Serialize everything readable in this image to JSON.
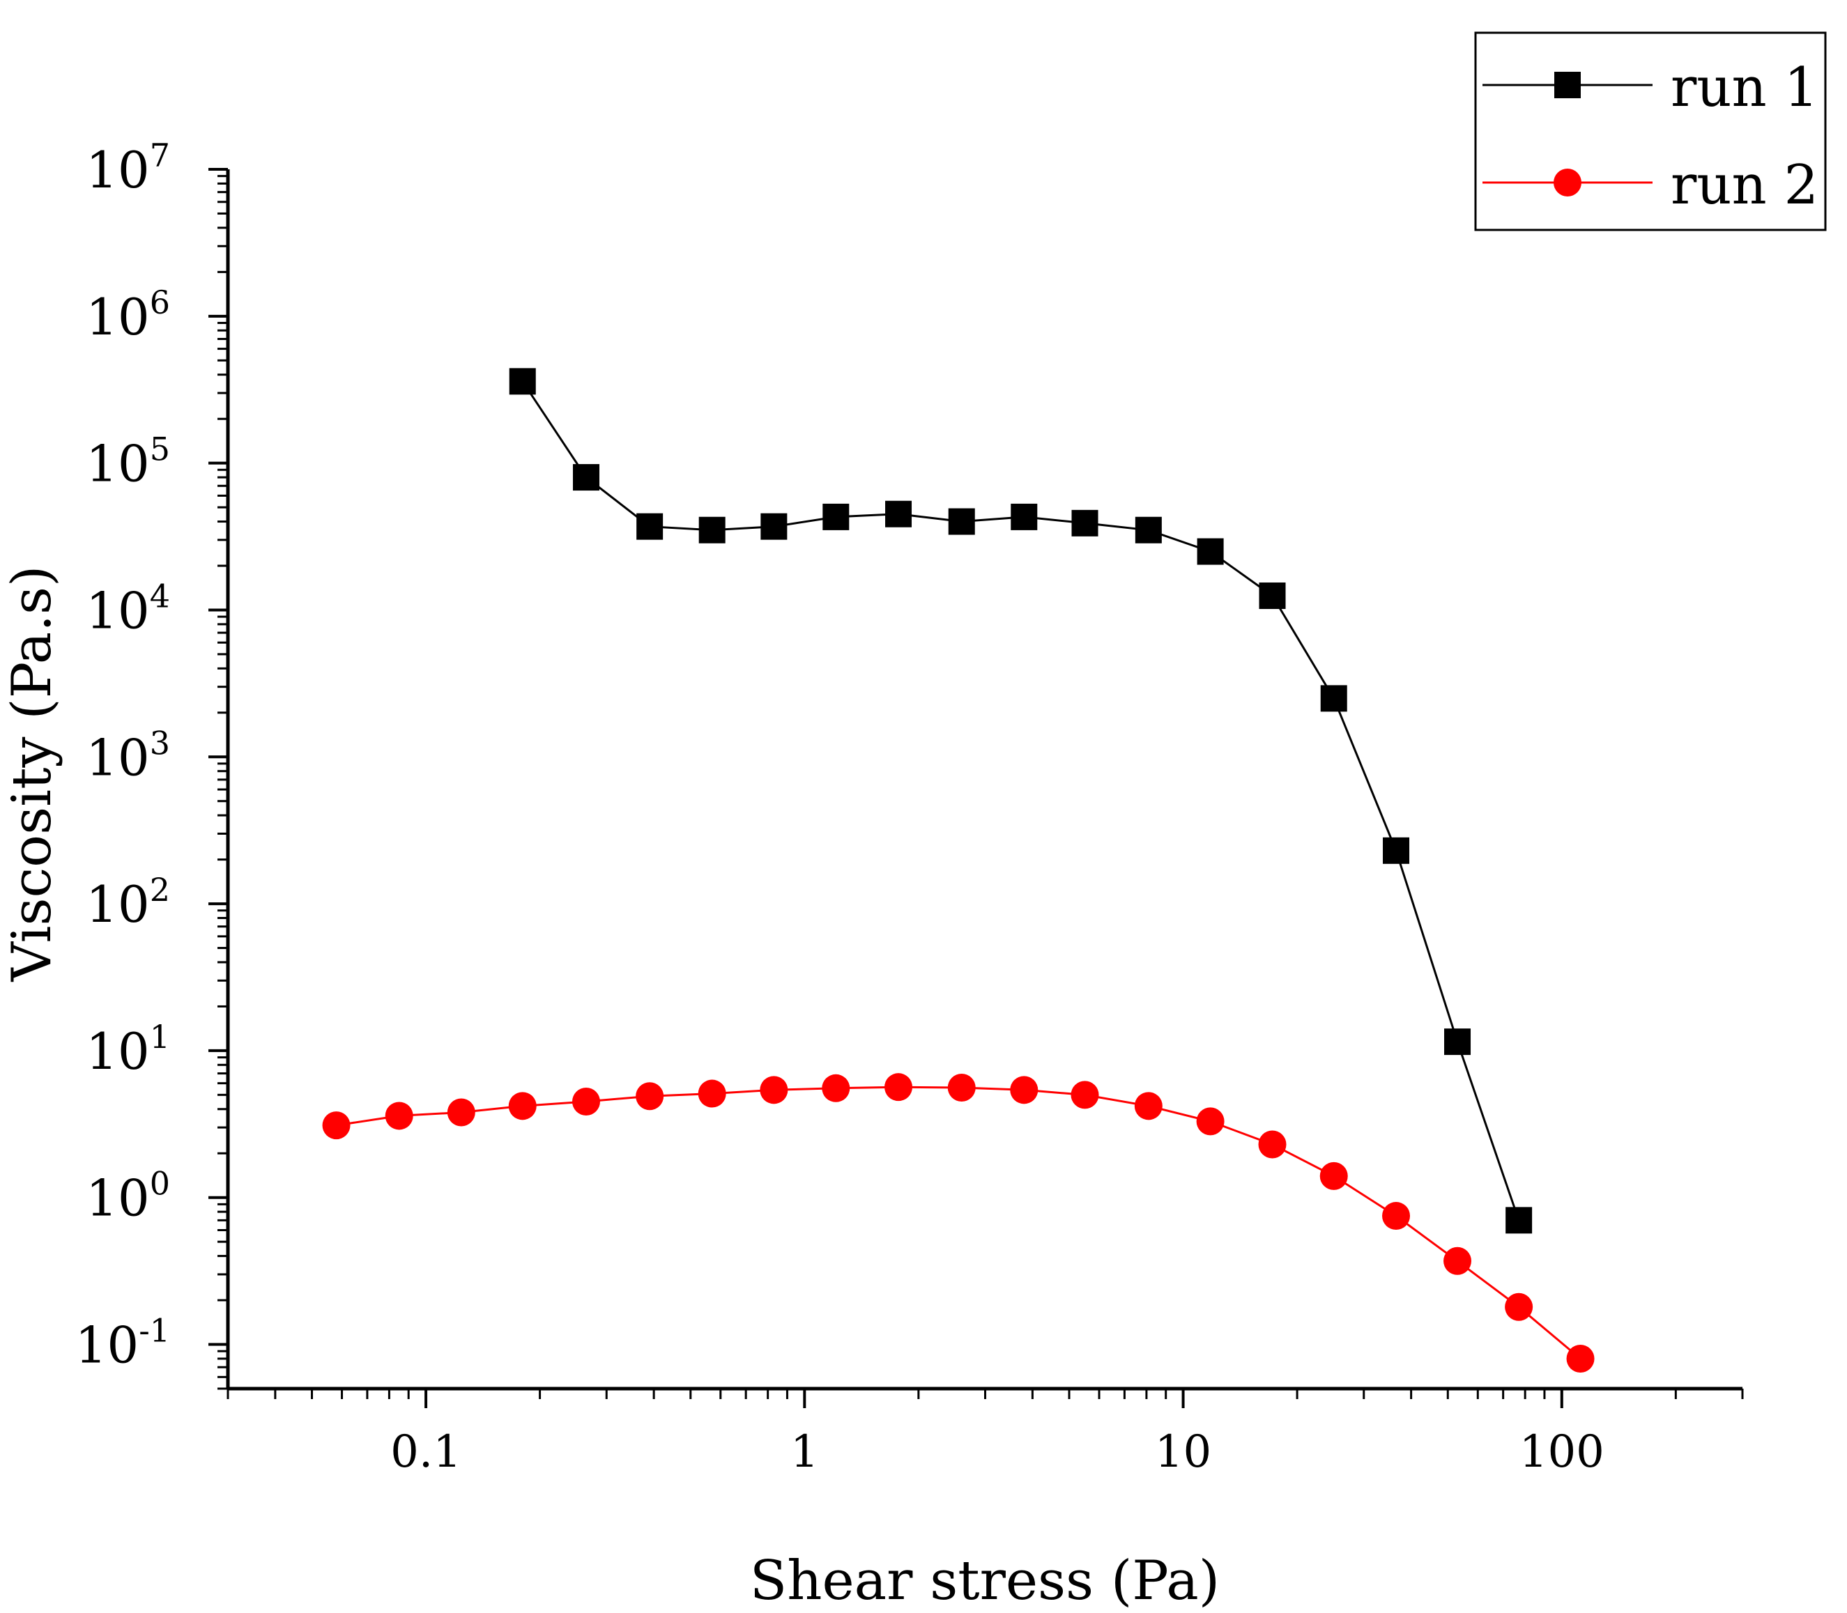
{
  "chart_data": {
    "type": "line",
    "title": "",
    "xlabel": "Shear stress (Pa)",
    "ylabel": "Viscosity (Pa.s)",
    "xscale": "log",
    "yscale": "log",
    "xlim": [
      0.03,
      300
    ],
    "ylim": [
      0.05,
      10000000
    ],
    "x_ticks": [
      {
        "value": 0.1,
        "label": "0.1"
      },
      {
        "value": 1,
        "label": "1"
      },
      {
        "value": 10,
        "label": "10"
      },
      {
        "value": 100,
        "label": "100"
      }
    ],
    "y_ticks": [
      {
        "value": 0.1,
        "base": "10",
        "exp": "-1"
      },
      {
        "value": 1,
        "base": "10",
        "exp": "0"
      },
      {
        "value": 10,
        "base": "10",
        "exp": "1"
      },
      {
        "value": 100,
        "base": "10",
        "exp": "2"
      },
      {
        "value": 1000,
        "base": "10",
        "exp": "3"
      },
      {
        "value": 10000,
        "base": "10",
        "exp": "4"
      },
      {
        "value": 100000,
        "base": "10",
        "exp": "5"
      },
      {
        "value": 1000000,
        "base": "10",
        "exp": "6"
      },
      {
        "value": 10000000,
        "base": "10",
        "exp": "7"
      }
    ],
    "legend_position": "top-right",
    "grid": false,
    "series": [
      {
        "name": "run 1",
        "color": "#000000",
        "marker": "square",
        "x": [
          0.18,
          0.265,
          0.39,
          0.57,
          0.83,
          1.21,
          1.77,
          2.6,
          3.8,
          5.5,
          8.1,
          11.8,
          17.2,
          25,
          36.5,
          53,
          77
        ],
        "y": [
          360000,
          80000,
          37000,
          35000,
          37000,
          43000,
          45000,
          40000,
          43000,
          39000,
          35000,
          25000,
          12500,
          2500,
          230,
          11.5,
          0.7
        ]
      },
      {
        "name": "run 2",
        "color": "#ff0000",
        "marker": "circle",
        "x": [
          0.058,
          0.085,
          0.124,
          0.18,
          0.265,
          0.39,
          0.57,
          0.83,
          1.21,
          1.77,
          2.6,
          3.8,
          5.5,
          8.1,
          11.8,
          17.2,
          25,
          36.5,
          53,
          77,
          112
        ],
        "y": [
          3.1,
          3.6,
          3.8,
          4.2,
          4.5,
          4.9,
          5.1,
          5.4,
          5.55,
          5.65,
          5.6,
          5.4,
          5.0,
          4.2,
          3.3,
          2.3,
          1.4,
          0.75,
          0.37,
          0.18,
          0.08
        ]
      }
    ]
  }
}
